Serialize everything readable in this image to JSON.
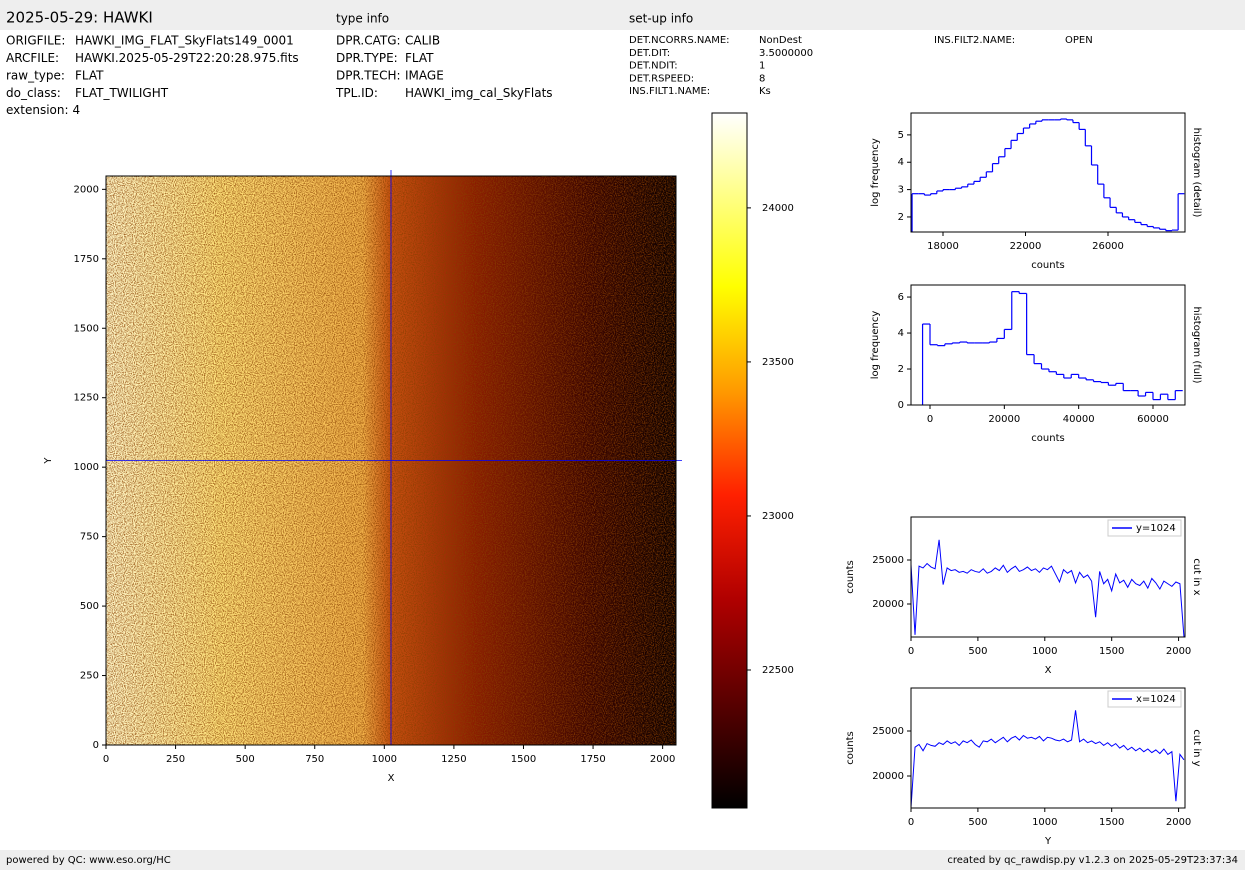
{
  "header": {
    "title": "2025-05-29: HAWKI",
    "type_info_heading": "type info",
    "setup_info_heading": "set-up info"
  },
  "file_info": [
    {
      "key": "ORIGFILE:",
      "value": "HAWKI_IMG_FLAT_SkyFlats149_0001"
    },
    {
      "key": "ARCFILE:",
      "value": "HAWKI.2025-05-29T22:20:28.975.fits"
    },
    {
      "key": "raw_type:",
      "value": "FLAT"
    },
    {
      "key": "do_class:",
      "value": "FLAT_TWILIGHT"
    },
    {
      "key": "extension:",
      "value": "4"
    }
  ],
  "type_info": [
    {
      "key": "DPR.CATG:",
      "value": "CALIB"
    },
    {
      "key": "DPR.TYPE:",
      "value": "FLAT"
    },
    {
      "key": "DPR.TECH:",
      "value": "IMAGE"
    },
    {
      "key": "TPL.ID:",
      "value": "HAWKI_img_cal_SkyFlats"
    }
  ],
  "setup_info": [
    {
      "key": "DET.NCORRS.NAME:",
      "value": "NonDest"
    },
    {
      "key": "DET.DIT:",
      "value": "3.5000000"
    },
    {
      "key": "DET.NDIT:",
      "value": "1"
    },
    {
      "key": "DET.RSPEED:",
      "value": "8"
    },
    {
      "key": "INS.FILT1.NAME:",
      "value": "Ks"
    },
    {
      "key": "INS.FILT2.NAME:",
      "value": "OPEN"
    }
  ],
  "footer": {
    "left": "powered by QC: www.eso.org/HC",
    "right": "created by qc_rawdisp.py v1.2.3 on 2025-05-29T23:37:34"
  },
  "chart_data": [
    {
      "type": "image",
      "xlabel": "X",
      "ylabel": "Y",
      "xlim": [
        0,
        2048
      ],
      "ylim": [
        0,
        2048
      ],
      "xticks": [
        0,
        250,
        500,
        750,
        1000,
        1250,
        1500,
        1750,
        2000
      ],
      "yticks": [
        0,
        250,
        500,
        750,
        1000,
        1250,
        1500,
        1750,
        2000
      ],
      "crosshair": {
        "x": 1024,
        "y": 1024,
        "color": "#0000ff"
      }
    },
    {
      "type": "colorbar",
      "ylim": [
        22052,
        24308
      ],
      "yticks": [
        22500,
        23000,
        23500,
        24000
      ]
    },
    {
      "type": "histogram",
      "title": "histogram (detail)",
      "xlabel": "counts",
      "ylabel": "log frequency",
      "color": "#0000ff",
      "xlim": [
        16448,
        29733
      ],
      "ylim": [
        1.45,
        5.8
      ],
      "xticks": [
        18000,
        22000,
        26000
      ],
      "yticks": [
        2,
        3,
        4,
        5
      ],
      "bins": [
        16500,
        16800,
        17100,
        17400,
        17700,
        18000,
        18300,
        18600,
        18900,
        19200,
        19500,
        19800,
        20100,
        20400,
        20700,
        21000,
        21300,
        21600,
        21900,
        22200,
        22500,
        22800,
        23100,
        23400,
        23700,
        24000,
        24300,
        24600,
        24900,
        25200,
        25500,
        25800,
        26100,
        26400,
        26700,
        27000,
        27300,
        27600,
        27900,
        28200,
        28500,
        28800,
        29100,
        29400,
        29700
      ],
      "values": [
        2.85,
        2.85,
        2.8,
        2.85,
        2.95,
        3.0,
        3.0,
        3.05,
        3.1,
        3.2,
        3.3,
        3.45,
        3.65,
        3.95,
        4.2,
        4.5,
        4.8,
        5.05,
        5.25,
        5.4,
        5.5,
        5.55,
        5.55,
        5.55,
        5.58,
        5.55,
        5.45,
        5.2,
        4.6,
        3.9,
        3.2,
        2.7,
        2.35,
        2.15,
        2.0,
        1.9,
        1.8,
        1.72,
        1.65,
        1.6,
        1.55,
        1.5,
        1.52,
        2.85
      ]
    },
    {
      "type": "histogram",
      "title": "histogram (full)",
      "xlabel": "counts",
      "ylabel": "log frequency",
      "color": "#0000ff",
      "xlim": [
        -5114,
        68614
      ],
      "ylim": [
        0,
        6.67
      ],
      "xticks": [
        0,
        20000,
        40000,
        60000
      ],
      "yticks": [
        0,
        2,
        4,
        6
      ],
      "bins": [
        -2000,
        0,
        2000,
        4000,
        6000,
        8000,
        10000,
        12000,
        14000,
        16000,
        18000,
        20000,
        22000,
        24000,
        26000,
        28000,
        30000,
        32000,
        34000,
        36000,
        38000,
        40000,
        42000,
        44000,
        46000,
        48000,
        50000,
        52000,
        54000,
        56000,
        58000,
        60000,
        62000,
        64000,
        66000,
        68000
      ],
      "values": [
        4.5,
        3.35,
        3.3,
        3.4,
        3.45,
        3.5,
        3.45,
        3.45,
        3.45,
        3.5,
        3.7,
        4.2,
        6.3,
        6.2,
        2.8,
        2.3,
        2.0,
        1.85,
        1.7,
        1.5,
        1.7,
        1.5,
        1.4,
        1.3,
        1.25,
        1.1,
        1.2,
        0.8,
        0.8,
        0.5,
        0.7,
        0.3,
        0.6,
        0.3,
        0.8
      ]
    },
    {
      "type": "line",
      "title": "cut in x",
      "xlabel": "X",
      "ylabel": "counts",
      "legend": "upper right",
      "xlim": [
        0,
        2048
      ],
      "ylim": [
        16250,
        29886
      ],
      "xticks": [
        0,
        500,
        1000,
        1500,
        2000
      ],
      "yticks": [
        20000,
        25000
      ],
      "x": [
        0,
        30,
        60,
        90,
        120,
        150,
        180,
        210,
        240,
        270,
        300,
        330,
        360,
        390,
        420,
        450,
        480,
        510,
        540,
        570,
        600,
        630,
        660,
        690,
        720,
        750,
        780,
        810,
        840,
        870,
        900,
        930,
        960,
        990,
        1020,
        1050,
        1080,
        1110,
        1140,
        1170,
        1200,
        1230,
        1260,
        1290,
        1320,
        1350,
        1380,
        1410,
        1440,
        1470,
        1500,
        1530,
        1560,
        1590,
        1620,
        1650,
        1680,
        1710,
        1740,
        1770,
        1800,
        1830,
        1860,
        1890,
        1920,
        1950,
        1980,
        2010,
        2040
      ],
      "series": [
        {
          "name": "y=1024",
          "color": "#0000ff",
          "values": [
            24500,
            16500,
            24300,
            24100,
            24600,
            24200,
            24000,
            27300,
            22200,
            24100,
            23800,
            23900,
            23600,
            23700,
            23500,
            23900,
            23700,
            23600,
            24000,
            23500,
            23700,
            24100,
            23800,
            24400,
            23600,
            24000,
            24300,
            23700,
            23900,
            24200,
            23800,
            24000,
            23600,
            24100,
            23900,
            24300,
            23400,
            22500,
            23900,
            23500,
            23800,
            22400,
            23600,
            23000,
            23300,
            22600,
            18500,
            23700,
            22300,
            22800,
            21500,
            23400,
            22400,
            22700,
            21900,
            22800,
            22300,
            22100,
            22600,
            21800,
            22900,
            22400,
            21700,
            22600,
            22300,
            22000,
            22500,
            22300,
            16300
          ]
        }
      ]
    },
    {
      "type": "line",
      "title": "cut in y",
      "xlabel": "Y",
      "ylabel": "counts",
      "legend": "upper right",
      "xlim": [
        0,
        2048
      ],
      "ylim": [
        16444,
        29778
      ],
      "xticks": [
        0,
        500,
        1000,
        1500,
        2000
      ],
      "yticks": [
        20000,
        25000
      ],
      "x": [
        0,
        30,
        60,
        90,
        120,
        150,
        180,
        210,
        240,
        270,
        300,
        330,
        360,
        390,
        420,
        450,
        480,
        510,
        540,
        570,
        600,
        630,
        660,
        690,
        720,
        750,
        780,
        810,
        840,
        870,
        900,
        930,
        960,
        990,
        1020,
        1050,
        1080,
        1110,
        1140,
        1170,
        1200,
        1230,
        1260,
        1290,
        1320,
        1350,
        1380,
        1410,
        1440,
        1470,
        1500,
        1530,
        1560,
        1590,
        1620,
        1650,
        1680,
        1710,
        1740,
        1770,
        1800,
        1830,
        1860,
        1890,
        1920,
        1950,
        1980,
        2010,
        2040
      ],
      "series": [
        {
          "name": "x=1024",
          "color": "#0000ff",
          "values": [
            16500,
            23200,
            23500,
            22800,
            23600,
            23400,
            23300,
            23700,
            23500,
            23900,
            23600,
            23800,
            23400,
            23900,
            23700,
            24000,
            23500,
            23200,
            23900,
            23800,
            24100,
            23700,
            24000,
            24300,
            23800,
            24200,
            24400,
            24000,
            24500,
            24200,
            24300,
            24100,
            24400,
            23900,
            24300,
            24200,
            24000,
            23900,
            24100,
            23800,
            24000,
            27300,
            23800,
            24100,
            23700,
            23900,
            23600,
            23800,
            23400,
            23700,
            23300,
            23600,
            23100,
            23400,
            22900,
            23200,
            22800,
            23100,
            22700,
            23000,
            22600,
            22900,
            22500,
            23000,
            22400,
            22700,
            17200,
            22400,
            21800
          ]
        }
      ]
    }
  ]
}
